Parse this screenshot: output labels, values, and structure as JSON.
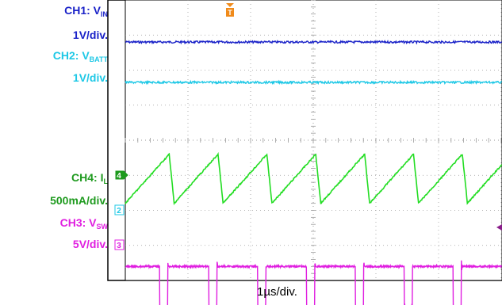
{
  "labels": {
    "ch1_prefix": "CH1: V",
    "ch1_sub": "IN",
    "ch1_scale": "1V/div.",
    "ch2_prefix": "CH2: V",
    "ch2_sub": "BATT",
    "ch2_scale": "1V/div.",
    "ch4_prefix": "CH4: I",
    "ch4_sub": "L",
    "ch4_scale": "500mA/div.",
    "ch3_prefix": "CH3: V",
    "ch3_sub": "SW",
    "ch3_scale": "5V/div."
  },
  "timebase": "1µs/div.",
  "markers": {
    "ch4": "4",
    "ch2": "2",
    "ch3": "3",
    "trigger": "T"
  },
  "colors": {
    "ch1": "#1a22c8",
    "ch2": "#1ec8e6",
    "ch4": "#22dd22",
    "ch3": "#e01ee0",
    "trigger": "#f08a1a"
  },
  "chart_data": {
    "type": "line",
    "xlabel": "1µs/div.",
    "grid": true,
    "series": [
      {
        "name": "CH1: VIN",
        "shape": "dc",
        "level_div": 1.2,
        "noise_div": 0.03
      },
      {
        "name": "CH2: VBATT",
        "shape": "dc",
        "level_div": 2.35,
        "noise_div": 0.03
      },
      {
        "name": "CH4: IL",
        "shape": "sawtooth",
        "period_div": 0.78,
        "min_div": 5.8,
        "max_div": 4.4,
        "fall_div": 0.08
      },
      {
        "name": "CH3: VSW",
        "shape": "pulse",
        "period_div": 0.78,
        "high_div": 7.6,
        "low_div": 8.8,
        "low_width_div": 0.13,
        "first_low_div": 0.55
      }
    ]
  }
}
